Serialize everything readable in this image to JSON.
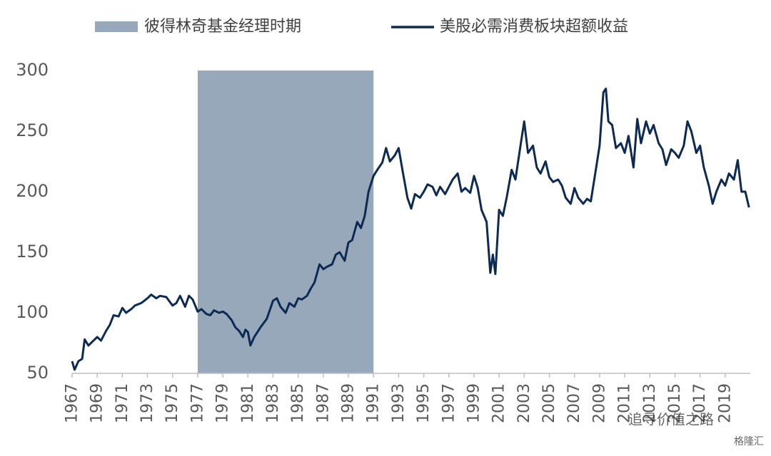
{
  "chart_data": {
    "type": "line",
    "span": {
      "name": "彼得林奇基金经理时期",
      "color": "#97a8ba",
      "x": [
        1977,
        1991
      ]
    },
    "series": [
      {
        "name": "美股必需消费板块超额收益",
        "color": "#0d2a52",
        "x": [
          1967.0,
          1967.2,
          1967.5,
          1967.8,
          1968.0,
          1968.3,
          1968.7,
          1969.0,
          1969.3,
          1969.7,
          1970.0,
          1970.3,
          1970.7,
          1971.0,
          1971.3,
          1971.7,
          1972.0,
          1972.5,
          1973.0,
          1973.3,
          1973.7,
          1974.0,
          1974.5,
          1975.0,
          1975.3,
          1975.6,
          1976.0,
          1976.3,
          1976.6,
          1977.0,
          1977.3,
          1977.7,
          1978.0,
          1978.3,
          1978.7,
          1979.0,
          1979.3,
          1979.7,
          1980.0,
          1980.3,
          1980.6,
          1980.8,
          1981.0,
          1981.2,
          1981.5,
          1982.0,
          1982.5,
          1983.0,
          1983.3,
          1983.6,
          1984.0,
          1984.3,
          1984.7,
          1985.0,
          1985.3,
          1985.7,
          1986.0,
          1986.3,
          1986.7,
          1987.0,
          1987.3,
          1987.7,
          1988.0,
          1988.3,
          1988.7,
          1989.0,
          1989.3,
          1989.7,
          1990.0,
          1990.3,
          1990.6,
          1991.0,
          1991.3,
          1991.7,
          1992.0,
          1992.3,
          1992.7,
          1993.0,
          1993.3,
          1993.7,
          1994.0,
          1994.3,
          1994.7,
          1995.0,
          1995.3,
          1995.7,
          1996.0,
          1996.3,
          1996.7,
          1997.0,
          1997.3,
          1997.7,
          1998.0,
          1998.3,
          1998.7,
          1999.0,
          1999.3,
          1999.6,
          2000.0,
          2000.3,
          2000.5,
          2000.7,
          2001.0,
          2001.3,
          2001.6,
          2002.0,
          2002.3,
          2002.7,
          2003.0,
          2003.3,
          2003.7,
          2004.0,
          2004.3,
          2004.7,
          2005.0,
          2005.3,
          2005.7,
          2006.0,
          2006.3,
          2006.7,
          2007.0,
          2007.3,
          2007.7,
          2008.0,
          2008.3,
          2008.7,
          2009.0,
          2009.3,
          2009.5,
          2009.7,
          2010.0,
          2010.3,
          2010.7,
          2011.0,
          2011.3,
          2011.7,
          2012.0,
          2012.3,
          2012.7,
          2013.0,
          2013.3,
          2013.7,
          2014.0,
          2014.3,
          2014.7,
          2015.0,
          2015.3,
          2015.7,
          2016.0,
          2016.3,
          2016.7,
          2017.0,
          2017.3,
          2017.7,
          2018.0,
          2018.3,
          2018.7,
          2019.0,
          2019.3,
          2019.7,
          2020.0,
          2020.3,
          2020.6,
          2020.9
        ],
        "values": [
          60,
          53,
          60,
          62,
          78,
          73,
          77,
          80,
          77,
          85,
          90,
          98,
          97,
          104,
          100,
          103,
          106,
          108,
          112,
          115,
          112,
          114,
          113,
          106,
          108,
          114,
          105,
          114,
          111,
          101,
          103,
          99,
          98,
          102,
          100,
          101,
          99,
          94,
          88,
          85,
          80,
          86,
          84,
          73,
          80,
          88,
          95,
          110,
          112,
          105,
          100,
          108,
          105,
          112,
          111,
          114,
          120,
          125,
          140,
          136,
          138,
          140,
          148,
          150,
          143,
          158,
          160,
          175,
          170,
          180,
          200,
          213,
          218,
          224,
          236,
          225,
          230,
          236,
          218,
          195,
          186,
          198,
          195,
          200,
          206,
          204,
          197,
          204,
          198,
          204,
          210,
          215,
          200,
          203,
          199,
          213,
          203,
          185,
          175,
          133,
          148,
          132,
          185,
          180,
          195,
          218,
          210,
          238,
          258,
          232,
          238,
          220,
          215,
          225,
          212,
          208,
          210,
          205,
          195,
          190,
          203,
          195,
          190,
          194,
          192,
          218,
          238,
          282,
          285,
          258,
          255,
          236,
          240,
          232,
          246,
          220,
          260,
          240,
          258,
          248,
          255,
          240,
          235,
          222,
          235,
          232,
          228,
          238,
          258,
          250,
          232,
          238,
          220,
          205,
          190,
          200,
          210,
          205,
          215,
          210,
          226,
          200,
          200,
          187
        ]
      }
    ],
    "xlim": [
      1967,
      2021
    ],
    "xticks": [
      1967,
      1969,
      1971,
      1973,
      1975,
      1977,
      1979,
      1981,
      1983,
      1985,
      1987,
      1989,
      1991,
      1993,
      1995,
      1997,
      1999,
      2001,
      2003,
      2005,
      2007,
      2009,
      2011,
      2013,
      2015,
      2017,
      2019
    ],
    "ylim": [
      50,
      300
    ],
    "yticks": [
      50,
      100,
      150,
      200,
      250,
      300
    ],
    "grid": false,
    "watermark": "追寻价值之路",
    "source_badge": "格隆汇"
  }
}
